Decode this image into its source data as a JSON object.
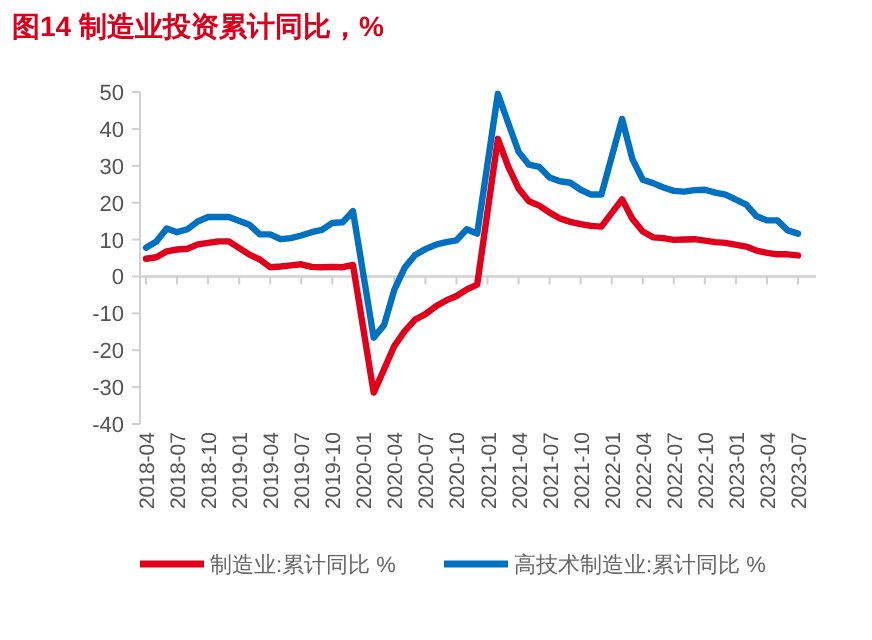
{
  "chart_data": {
    "type": "line",
    "title": "图14  制造业投资累计同比，%",
    "categories": [
      "2018-04",
      null,
      null,
      "2018-07",
      null,
      null,
      "2018-10",
      null,
      null,
      "2019-01",
      null,
      null,
      "2019-04",
      null,
      null,
      "2019-07",
      null,
      null,
      "2019-10",
      null,
      null,
      "2020-01",
      null,
      null,
      "2020-04",
      null,
      null,
      "2020-07",
      null,
      null,
      "2020-10",
      null,
      null,
      "2021-01",
      null,
      null,
      "2021-04",
      null,
      null,
      "2021-07",
      null,
      null,
      "2021-10",
      null,
      null,
      "2022-01",
      null,
      null,
      "2022-04",
      null,
      null,
      "2022-07",
      null,
      null,
      "2022-10",
      null,
      null,
      "2023-01",
      null,
      null,
      "2023-04",
      null,
      null,
      "2023-07"
    ],
    "series": [
      {
        "name": "制造业:累计同比 %",
        "color": "#e0001b",
        "values": [
          4.8,
          5.2,
          6.8,
          7.3,
          7.5,
          8.7,
          9.1,
          9.5,
          9.5,
          null,
          5.9,
          4.6,
          2.5,
          2.7,
          3.0,
          3.3,
          2.6,
          2.5,
          2.6,
          2.5,
          3.1,
          null,
          -31.5,
          -25.2,
          -18.8,
          -14.8,
          -11.7,
          -10.2,
          -8.1,
          -6.5,
          -5.3,
          -3.5,
          -2.2,
          null,
          37.3,
          29.8,
          23.8,
          20.4,
          19.2,
          17.3,
          15.7,
          14.8,
          14.2,
          13.7,
          13.5,
          null,
          20.9,
          15.6,
          12.2,
          10.6,
          10.4,
          9.9,
          10.0,
          10.1,
          9.7,
          9.3,
          9.1,
          null,
          8.1,
          7.0,
          6.4,
          6.0,
          6.0,
          5.7
        ]
      },
      {
        "name": "高技术制造业:累计同比 %",
        "color": "#0070c0",
        "values": [
          7.8,
          9.5,
          13.0,
          12.0,
          12.8,
          14.9,
          16.1,
          16.1,
          16.1,
          null,
          14.0,
          11.4,
          11.4,
          10.1,
          10.4,
          11.1,
          12.0,
          12.6,
          14.5,
          14.7,
          17.7,
          null,
          -16.6,
          -13.2,
          -3.6,
          2.4,
          5.8,
          7.4,
          8.6,
          9.3,
          9.8,
          12.8,
          11.6,
          null,
          49.5,
          41.6,
          33.8,
          30.3,
          29.7,
          26.8,
          25.8,
          25.4,
          23.5,
          22.2,
          22.2,
          null,
          42.7,
          31.8,
          26.2,
          25.3,
          24.1,
          23.2,
          23.0,
          23.4,
          23.5,
          22.7,
          22.2,
          null,
          19.5,
          16.3,
          15.2,
          15.2,
          12.5,
          11.6
        ]
      }
    ],
    "ylim": [
      -40,
      50
    ],
    "yticks": [
      -40,
      -30,
      -20,
      -10,
      0,
      10,
      20,
      30,
      40,
      50
    ],
    "legend": "bottom",
    "line_style": "solid"
  }
}
